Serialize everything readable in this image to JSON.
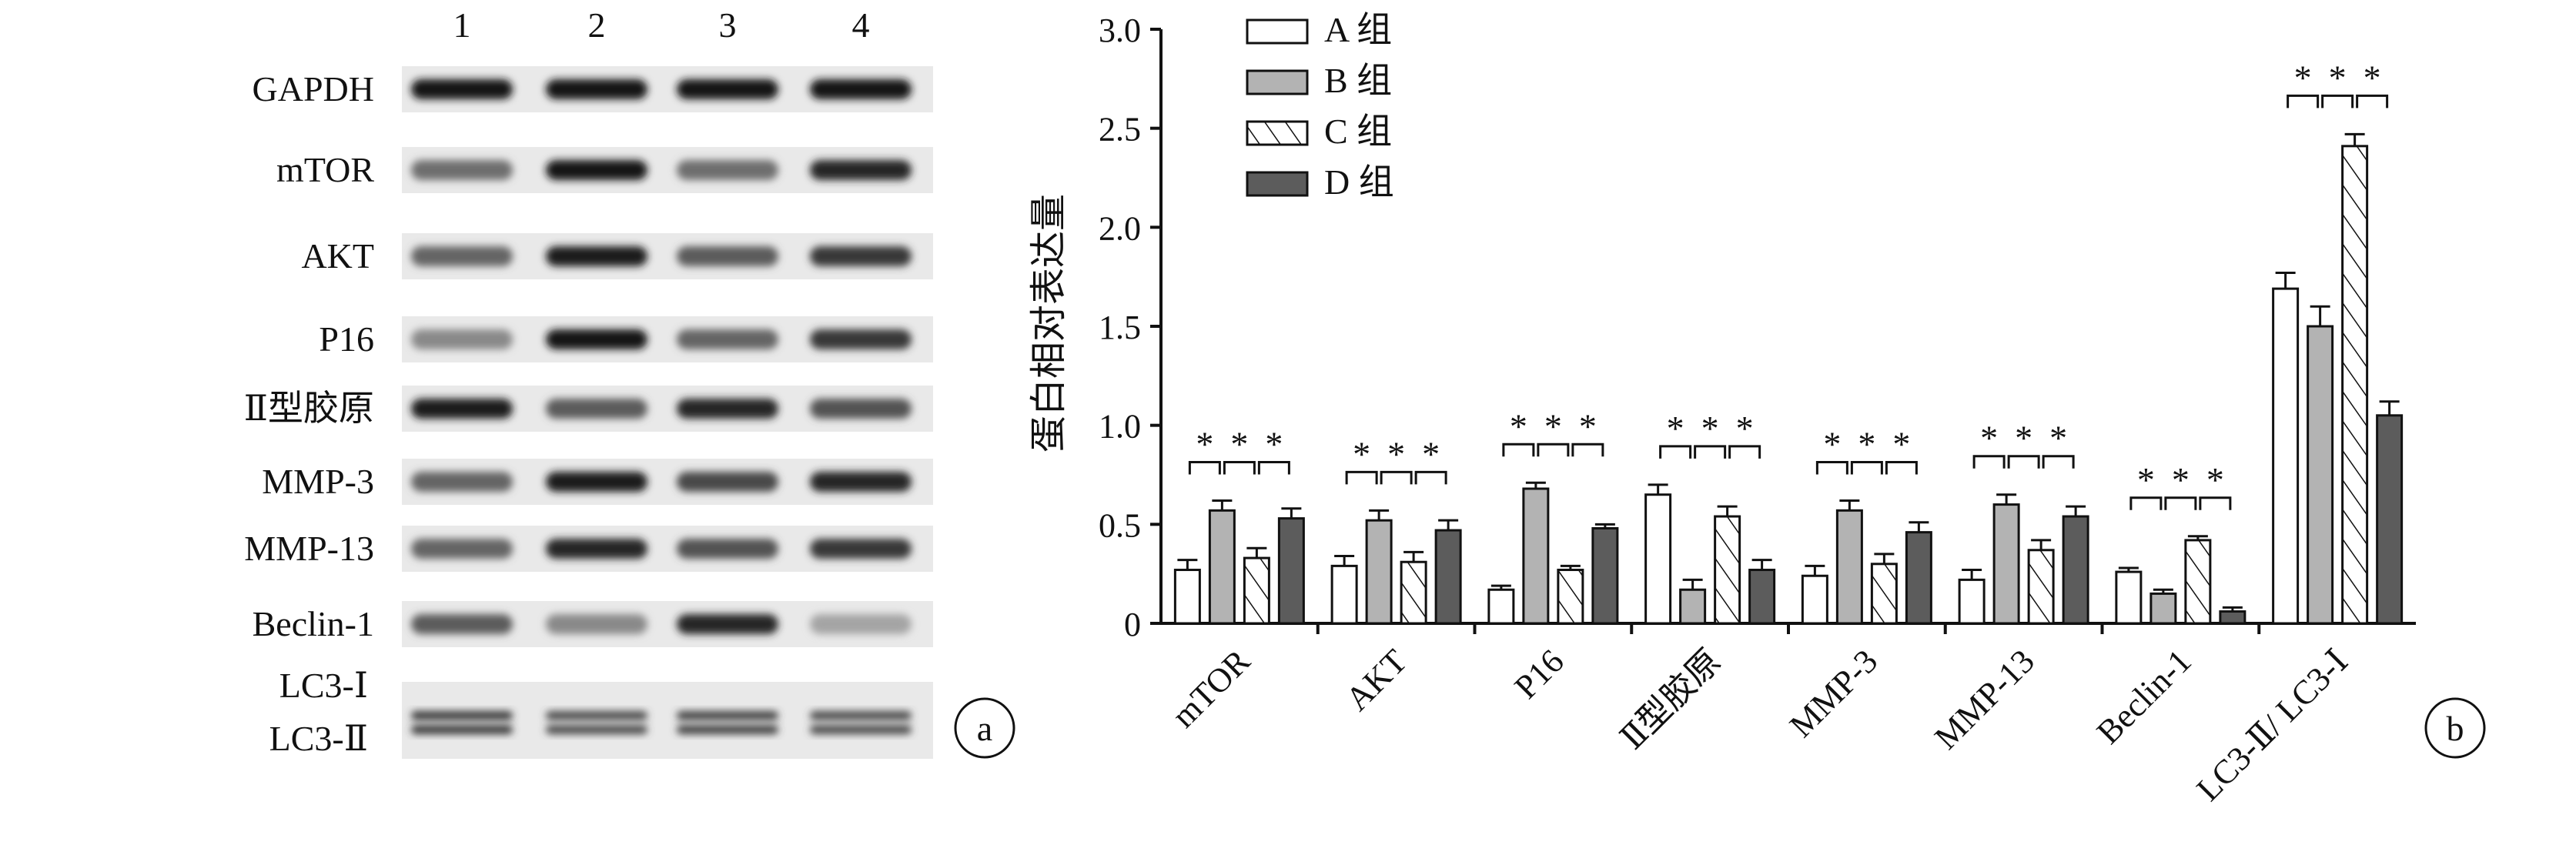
{
  "panel_a": {
    "lane_numbers": [
      "1",
      "2",
      "3",
      "4"
    ],
    "rows": [
      {
        "label": "GAPDH",
        "intensity": [
          1.0,
          1.0,
          1.0,
          1.0
        ]
      },
      {
        "label": "mTOR",
        "intensity": [
          0.5,
          1.0,
          0.5,
          0.9
        ]
      },
      {
        "label": "AKT",
        "intensity": [
          0.55,
          0.95,
          0.6,
          0.8
        ]
      },
      {
        "label": "P16",
        "intensity": [
          0.35,
          1.0,
          0.55,
          0.8
        ]
      },
      {
        "label": "Ⅱ型胶原",
        "intensity": [
          0.95,
          0.6,
          0.9,
          0.65
        ]
      },
      {
        "label": "MMP-3",
        "intensity": [
          0.55,
          0.95,
          0.7,
          0.9
        ]
      },
      {
        "label": "MMP-13",
        "intensity": [
          0.55,
          0.9,
          0.65,
          0.8
        ]
      },
      {
        "label": "Beclin-1",
        "intensity": [
          0.6,
          0.35,
          0.9,
          0.2
        ]
      },
      {
        "label": "LC3-Ⅰ",
        "label2": "LC3-Ⅱ",
        "intensity": [
          0.8,
          0.7,
          0.75,
          0.7
        ],
        "double": true
      }
    ],
    "letter": "a"
  },
  "chart_data": {
    "type": "bar",
    "panel_letter": "b",
    "ylabel": "蛋白相对表达量",
    "ylim": [
      0,
      3.0
    ],
    "yticks": [
      "0",
      "0.5",
      "1.0",
      "1.5",
      "2.0",
      "2.5",
      "3.0"
    ],
    "ytick_values": [
      0,
      0.5,
      1.0,
      1.5,
      2.0,
      2.5,
      3.0
    ],
    "categories": [
      "mTOR",
      "AKT",
      "P16",
      "Ⅱ型胶原",
      "MMP-3",
      "MMP-13",
      "Beclin-1",
      "LC3-Ⅱ/ LC3-Ⅰ"
    ],
    "series": [
      {
        "name": "A 组",
        "pattern": "white",
        "values": [
          0.27,
          0.29,
          0.17,
          0.65,
          0.24,
          0.22,
          0.26,
          1.69
        ],
        "errors": [
          0.05,
          0.05,
          0.02,
          0.05,
          0.05,
          0.05,
          0.02,
          0.08
        ]
      },
      {
        "name": "B 组",
        "pattern": "lightgray",
        "values": [
          0.57,
          0.52,
          0.68,
          0.17,
          0.57,
          0.6,
          0.15,
          1.5
        ],
        "errors": [
          0.05,
          0.05,
          0.03,
          0.05,
          0.05,
          0.05,
          0.02,
          0.1
        ]
      },
      {
        "name": "C 组",
        "pattern": "hatch",
        "values": [
          0.33,
          0.31,
          0.27,
          0.54,
          0.3,
          0.37,
          0.42,
          2.41
        ],
        "errors": [
          0.05,
          0.05,
          0.02,
          0.05,
          0.05,
          0.05,
          0.02,
          0.06
        ]
      },
      {
        "name": "D 组",
        "pattern": "darkgray",
        "values": [
          0.53,
          0.47,
          0.48,
          0.27,
          0.46,
          0.54,
          0.06,
          1.05
        ],
        "errors": [
          0.05,
          0.05,
          0.02,
          0.05,
          0.05,
          0.05,
          0.02,
          0.07
        ]
      }
    ],
    "significance": {
      "marks": [
        "*",
        "*",
        "*"
      ]
    },
    "legend": "top-left"
  }
}
